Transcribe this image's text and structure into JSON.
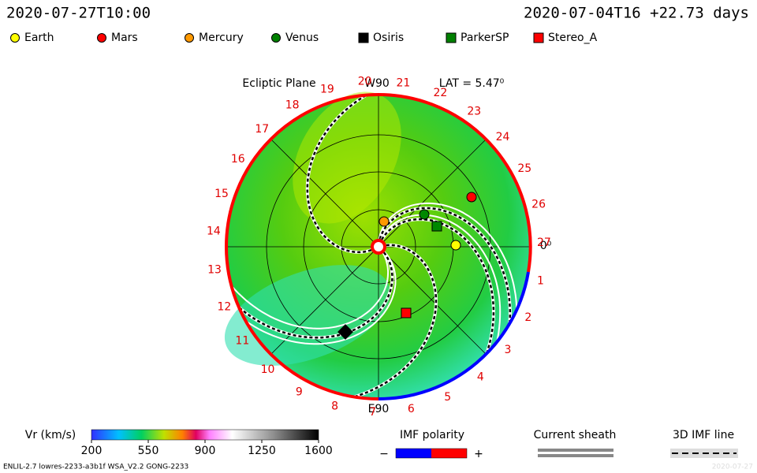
{
  "header": {
    "left": "2020-07-27T10:00",
    "right": "2020-07-04T16 +22.73 days"
  },
  "legend": [
    {
      "name": "Earth",
      "color": "#ffff00",
      "shape": "circle"
    },
    {
      "name": "Mars",
      "color": "#ff0000",
      "shape": "circle"
    },
    {
      "name": "Mercury",
      "color": "#ff9900",
      "shape": "circle"
    },
    {
      "name": "Venus",
      "color": "#008000",
      "shape": "circle"
    },
    {
      "name": "Osiris",
      "color": "#000000",
      "shape": "square"
    },
    {
      "name": "ParkerSP",
      "color": "#008000",
      "shape": "square"
    },
    {
      "name": "Stereo_A",
      "color": "#ff0000",
      "shape": "square"
    }
  ],
  "plot": {
    "title": "Ecliptic Plane",
    "top": "W90",
    "bottom": "E90",
    "lat": "LAT = 5.47⁰",
    "zero": "0⁰",
    "carrington": [
      "1",
      "2",
      "3",
      "4",
      "5",
      "6",
      "7",
      "8",
      "9",
      "10",
      "11",
      "12",
      "13",
      "14",
      "15",
      "16",
      "17",
      "18",
      "19",
      "20",
      "21",
      "22",
      "23",
      "24",
      "25",
      "26",
      "27"
    ]
  },
  "colorbar": {
    "label": "Vr (km/s)",
    "range": [
      200,
      1600
    ],
    "ticks": [
      200,
      550,
      900,
      1250,
      1600
    ]
  },
  "imf": {
    "title": "IMF polarity",
    "minus": "−",
    "plus": "+"
  },
  "sheath": {
    "title": "Current sheath"
  },
  "imf_line": {
    "title": "3D IMF line"
  },
  "footer": {
    "left": "ENLIL-2.7 lowres-2233-a3b1f WSA_V2.2 GONG-2233",
    "right": "2020-07-27"
  }
}
